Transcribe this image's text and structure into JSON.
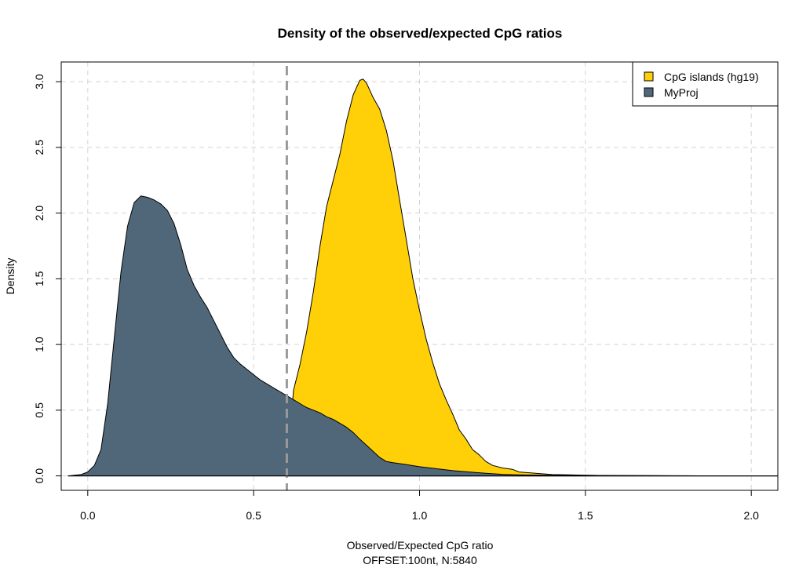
{
  "chart_data": {
    "type": "area",
    "title": "Density of the observed/expected CpG ratios",
    "xlabel": "Observed/Expected CpG ratio",
    "xlabel2": "OFFSET:100nt, N:5840",
    "ylabel": "Density",
    "xlim": [
      -0.08,
      2.08
    ],
    "ylim": [
      -0.11,
      3.15
    ],
    "xticks": [
      0.0,
      0.5,
      1.0,
      1.5,
      2.0
    ],
    "xtick_labels": [
      "0.0",
      "0.5",
      "1.0",
      "1.5",
      "2.0"
    ],
    "yticks": [
      0.0,
      0.5,
      1.0,
      1.5,
      2.0,
      2.5,
      3.0
    ],
    "ytick_labels": [
      "0.0",
      "0.5",
      "1.0",
      "1.5",
      "2.0",
      "2.5",
      "3.0"
    ],
    "grid": true,
    "legend_position": "top-right",
    "vline": {
      "x": 0.6,
      "style": "dashed",
      "color": "#9a9a9a"
    },
    "series": [
      {
        "name": "CpG islands (hg19)",
        "color": "#ffd008",
        "x": [
          0.6,
          0.62,
          0.64,
          0.66,
          0.68,
          0.7,
          0.72,
          0.74,
          0.76,
          0.78,
          0.8,
          0.82,
          0.83,
          0.84,
          0.86,
          0.88,
          0.9,
          0.92,
          0.94,
          0.96,
          0.98,
          1.0,
          1.02,
          1.04,
          1.06,
          1.08,
          1.1,
          1.12,
          1.14,
          1.16,
          1.18,
          1.2,
          1.22,
          1.25,
          1.28,
          1.3,
          1.35,
          1.4,
          1.45,
          1.5,
          1.55,
          1.6,
          1.7,
          1.8,
          2.0,
          2.08
        ],
        "y": [
          0.0,
          0.65,
          0.85,
          1.1,
          1.4,
          1.75,
          2.05,
          2.25,
          2.45,
          2.7,
          2.9,
          3.01,
          3.02,
          2.99,
          2.88,
          2.79,
          2.63,
          2.4,
          2.1,
          1.8,
          1.5,
          1.26,
          1.04,
          0.86,
          0.7,
          0.58,
          0.47,
          0.35,
          0.28,
          0.2,
          0.16,
          0.11,
          0.08,
          0.06,
          0.05,
          0.03,
          0.02,
          0.01,
          0.008,
          0.005,
          0.003,
          0.002,
          0.001,
          0.0,
          0.0,
          0.0
        ]
      },
      {
        "name": "MyProj",
        "color": "#4f6779",
        "x": [
          -0.06,
          -0.02,
          0.0,
          0.02,
          0.04,
          0.06,
          0.08,
          0.1,
          0.12,
          0.14,
          0.16,
          0.18,
          0.2,
          0.22,
          0.24,
          0.26,
          0.28,
          0.3,
          0.32,
          0.34,
          0.36,
          0.38,
          0.4,
          0.42,
          0.44,
          0.46,
          0.48,
          0.5,
          0.52,
          0.54,
          0.56,
          0.58,
          0.6,
          0.62,
          0.64,
          0.66,
          0.68,
          0.7,
          0.72,
          0.74,
          0.76,
          0.78,
          0.8,
          0.82,
          0.85,
          0.88,
          0.9,
          0.92,
          0.95,
          1.0,
          1.05,
          1.1,
          1.15,
          1.2,
          1.25,
          1.3,
          1.4,
          1.5,
          1.6,
          1.7,
          1.8,
          2.0,
          2.08
        ],
        "y": [
          0.0,
          0.01,
          0.03,
          0.08,
          0.2,
          0.55,
          1.05,
          1.55,
          1.9,
          2.08,
          2.13,
          2.12,
          2.1,
          2.07,
          2.02,
          1.92,
          1.76,
          1.57,
          1.45,
          1.36,
          1.28,
          1.18,
          1.08,
          0.98,
          0.9,
          0.85,
          0.81,
          0.77,
          0.73,
          0.7,
          0.67,
          0.64,
          0.61,
          0.58,
          0.55,
          0.52,
          0.5,
          0.48,
          0.45,
          0.43,
          0.4,
          0.37,
          0.33,
          0.28,
          0.21,
          0.14,
          0.11,
          0.1,
          0.09,
          0.07,
          0.055,
          0.04,
          0.03,
          0.02,
          0.012,
          0.008,
          0.005,
          0.004,
          0.003,
          0.002,
          0.001,
          0.0,
          0.0
        ]
      }
    ]
  }
}
